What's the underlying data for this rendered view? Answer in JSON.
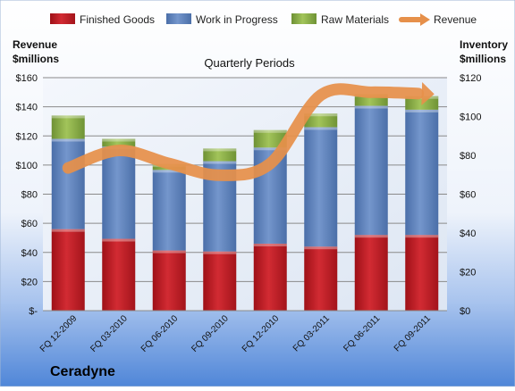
{
  "chart_data": {
    "type": "bar",
    "stacked": true,
    "subtitle": "Quarterly Periods",
    "company": "Ceradyne",
    "categories": [
      "FQ 12-2009",
      "FQ 03-2010",
      "FQ 06-2010",
      "FQ 09-2010",
      "FQ 12-2010",
      "FQ 03-2011",
      "FQ 06-2011",
      "FQ 09-2011"
    ],
    "series": [
      {
        "name": "Finished Goods",
        "axis": "right",
        "color": "#c0202a",
        "values": [
          42,
          37,
          31,
          30.5,
          34.5,
          33,
          39,
          39
        ]
      },
      {
        "name": "Work in Progress",
        "axis": "right",
        "color": "#5a7fba",
        "values": [
          46.5,
          47.5,
          41.5,
          46.5,
          49.5,
          61.5,
          66.5,
          64.5
        ]
      },
      {
        "name": "Raw Materials",
        "axis": "right",
        "color": "#8cb043",
        "values": [
          12,
          4,
          3,
          6.5,
          9,
          7,
          6,
          7
        ]
      },
      {
        "name": "Revenue",
        "axis": "left",
        "type": "line",
        "color": "#e6904a",
        "values": [
          98,
          110,
          101,
          93,
          101,
          148,
          150,
          149
        ]
      }
    ],
    "left_axis": {
      "label_line1": "Revenue",
      "label_line2": "$millions",
      "min": 0,
      "max": 160,
      "step": 20,
      "ticks": [
        "$-",
        "$20",
        "$40",
        "$60",
        "$80",
        "$100",
        "$120",
        "$140",
        "$160"
      ]
    },
    "right_axis": {
      "label_line1": "Inventory",
      "label_line2": "$millions",
      "min": 0,
      "max": 120,
      "step": 20,
      "ticks": [
        "$0",
        "$20",
        "$40",
        "$60",
        "$80",
        "$100",
        "$120"
      ]
    },
    "grid": true,
    "legend_position": "top"
  }
}
